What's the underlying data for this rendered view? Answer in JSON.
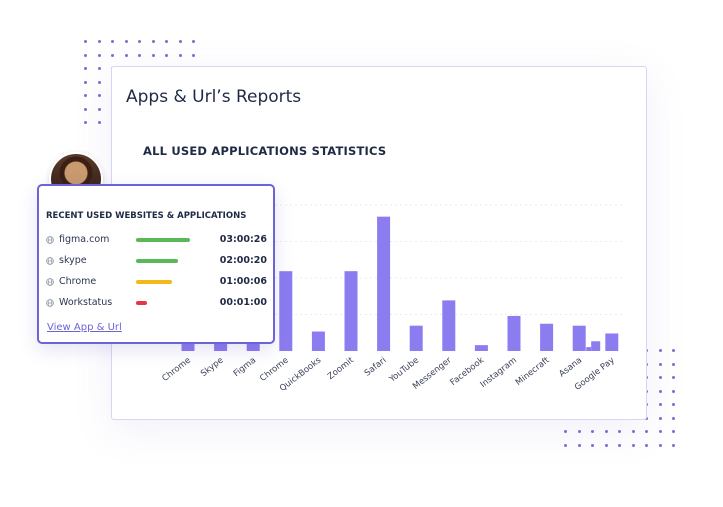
{
  "report": {
    "title": "Apps & Url’s Reports",
    "chart_title": "ALL USED APPLICATIONS STATISTICS"
  },
  "chart_data": {
    "type": "bar",
    "title": "ALL USED APPLICATIONS STATISTICS",
    "categories": [
      "Chrome",
      "Skype",
      "Figma",
      "Chrome",
      "QuickBooks",
      "Zoomit",
      "Safari",
      "YouTube",
      "Messenger",
      "Facebook",
      "Instagram",
      "Minecraft",
      "Asana",
      "Google Pay"
    ],
    "values": [
      8,
      5,
      5,
      41,
      10,
      41,
      69,
      13,
      26,
      3,
      18,
      14,
      13,
      9
    ],
    "extra_bars": [
      {
        "after_category": "Asana",
        "value": 5
      },
      {
        "after_category": "Asana",
        "value": 2
      }
    ],
    "ylim": [
      0,
      75
    ],
    "grid": true,
    "bar_color": "#8b7cf0",
    "xlabel": "",
    "ylabel": ""
  },
  "recent": {
    "title": "RECENT USED WEBSITES & APPLICATIONS",
    "link_label": "View App & Url",
    "items": [
      {
        "name": "figma.com",
        "time": "03:00:26",
        "level": 1.0,
        "color": "#58b85a"
      },
      {
        "name": "skype",
        "time": "02:00:20",
        "level": 0.77,
        "color": "#58b85a"
      },
      {
        "name": "Chrome",
        "time": "01:00:06",
        "level": 0.66,
        "color": "#f2b81c"
      },
      {
        "name": "Workstatus",
        "time": "00:01:00",
        "level": 0.2,
        "color": "#e8344a"
      }
    ]
  },
  "colors": {
    "accent": "#6c63d6",
    "bar": "#8b7cf0",
    "dots": "#7b6fd6"
  },
  "icons": {
    "site": "globe-icon"
  }
}
